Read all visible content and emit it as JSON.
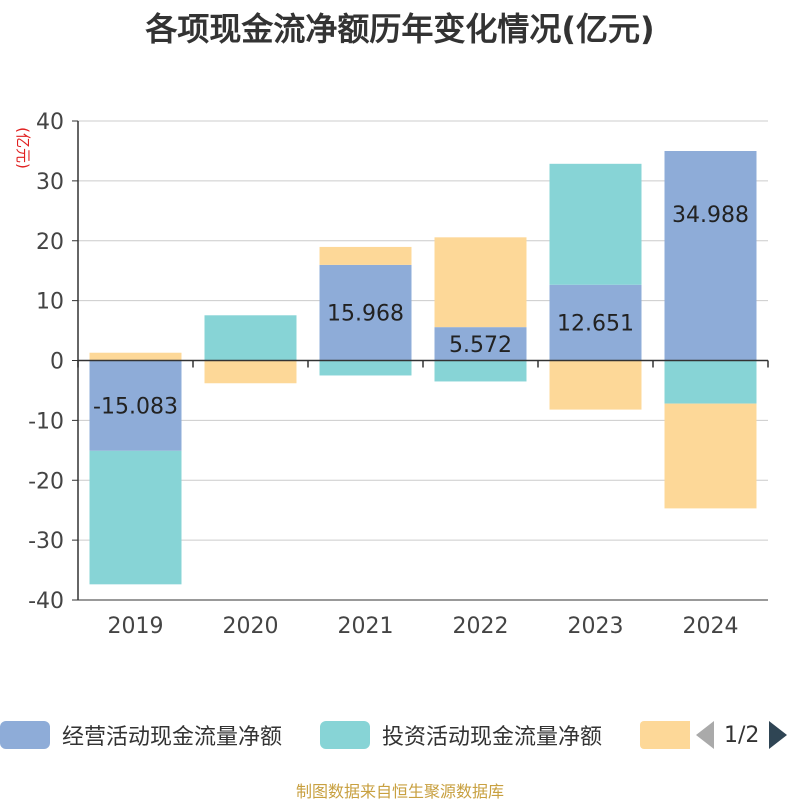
{
  "chart_data": {
    "type": "bar",
    "stacked": true,
    "title": "各项现金流净额历年变化情况(亿元)",
    "ylabel": "(亿元)",
    "xlabel": "",
    "categories": [
      "2019",
      "2020",
      "2021",
      "2022",
      "2023",
      "2024"
    ],
    "ylim": [
      -40,
      40
    ],
    "yticks": [
      40,
      30,
      20,
      10,
      0,
      -10,
      -20,
      -30,
      -40
    ],
    "series": [
      {
        "name": "经营活动现金流量净额",
        "color": "#8eacd8",
        "values": [
          -15.083,
          0.05,
          15.968,
          5.572,
          12.651,
          34.988
        ],
        "labels": [
          "-15.083",
          "",
          "15.968",
          "5.572",
          "12.651",
          "34.988"
        ]
      },
      {
        "name": "投资活动现金流量净额",
        "color": "#87d4d6",
        "values": [
          -22.3,
          7.5,
          -2.5,
          -3.5,
          20.2,
          -7.2
        ]
      },
      {
        "name": "",
        "color": "#fdd898",
        "values": [
          1.3,
          -3.8,
          3.0,
          15.0,
          -8.2,
          -17.5
        ]
      }
    ],
    "hidden_label": "",
    "legend_position": "bottom"
  },
  "legend": {
    "items": [
      "经营活动现金流量净额",
      "投资活动现金流量净额",
      ""
    ],
    "page": "1/2"
  },
  "source": "制图数据来自恒生聚源数据库"
}
